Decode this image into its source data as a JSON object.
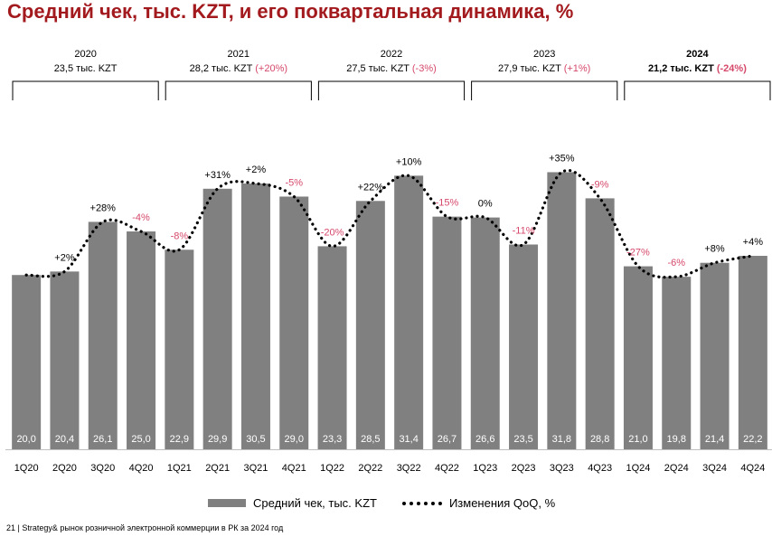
{
  "title": "Средний чек, тыс. KZT, и его поквартальная динамика, %",
  "chart_data": {
    "type": "bar",
    "title": "Средний чек, тыс. KZT, и его поквартальная динамика, %",
    "categories": [
      "1Q20",
      "2Q20",
      "3Q20",
      "4Q20",
      "1Q21",
      "2Q21",
      "3Q21",
      "4Q21",
      "1Q22",
      "2Q22",
      "3Q22",
      "4Q22",
      "1Q23",
      "2Q23",
      "3Q23",
      "4Q23",
      "1Q24",
      "2Q24",
      "3Q24",
      "4Q24"
    ],
    "series": [
      {
        "name": "Средний чек, тыс. KZT",
        "type": "bar",
        "values": [
          20.0,
          20.4,
          26.1,
          25.0,
          22.9,
          29.9,
          30.5,
          29.0,
          23.3,
          28.5,
          31.4,
          26.7,
          26.6,
          23.5,
          31.8,
          28.8,
          21.0,
          19.8,
          21.4,
          22.2
        ],
        "labels": [
          "20,0",
          "20,4",
          "26,1",
          "25,0",
          "22,9",
          "29,9",
          "30,5",
          "29,0",
          "23,3",
          "28,5",
          "31,4",
          "26,7",
          "26,6",
          "23,5",
          "31,8",
          "28,8",
          "21,0",
          "19,8",
          "21,4",
          "22,2"
        ]
      },
      {
        "name": "Изменения QoQ, %",
        "type": "line",
        "style": "dotted",
        "labels": [
          "",
          "+2%",
          "+28%",
          "-4%",
          "-8%",
          "+31%",
          "+2%",
          "-5%",
          "-20%",
          "+22%",
          "+10%",
          "-15%",
          "0%",
          "-11%",
          "+35%",
          "-9%",
          "-27%",
          "-6%",
          "+8%",
          "+4%"
        ]
      }
    ],
    "ylim": [
      0,
      36
    ],
    "groups": [
      {
        "year": "2020",
        "summary": "23,5 тыс. KZT",
        "change": "",
        "bold": false
      },
      {
        "year": "2021",
        "summary": "28,2 тыс. KZT",
        "change": "(+20%)",
        "bold": false
      },
      {
        "year": "2022",
        "summary": "27,5 тыс. KZT",
        "change": "(-3%)",
        "bold": false
      },
      {
        "year": "2023",
        "summary": "27,9 тыс. KZT",
        "change": "(+1%)",
        "bold": false
      },
      {
        "year": "2024",
        "summary": "21,2 тыс. KZT",
        "change": "(-24%)",
        "bold": true
      }
    ],
    "colors": {
      "bar": "#808080",
      "negative": "#d6486a",
      "positive": "#000000",
      "title": "#a31a1e"
    }
  },
  "legend": {
    "bar_label": "Средний чек, тыс. KZT",
    "line_label": "Изменения QoQ, %"
  },
  "footer": "21 | Strategy& рынок розничной электронной коммерции в РК за 2024 год"
}
